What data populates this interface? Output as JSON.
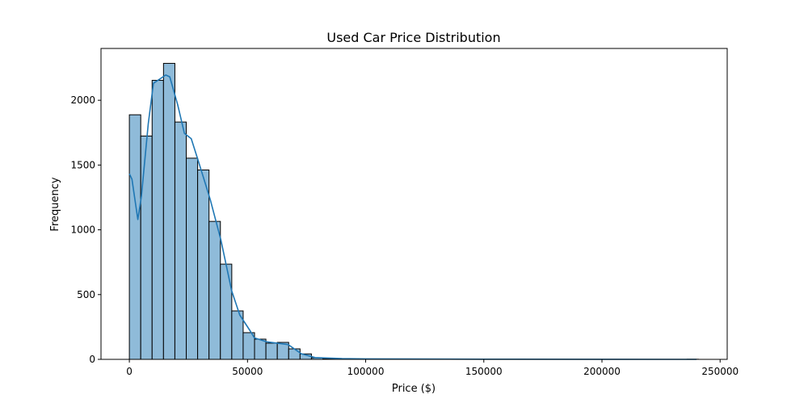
{
  "chart_data": {
    "type": "bar",
    "subtype": "histogram-with-kde",
    "title": "Used Car Price Distribution",
    "xlabel": "Price ($)",
    "ylabel": "Frequency",
    "xlim": [
      -12000,
      253000
    ],
    "ylim": [
      0,
      2400
    ],
    "xticks": [
      0,
      50000,
      100000,
      150000,
      200000,
      250000
    ],
    "yticks": [
      0,
      500,
      1000,
      1500,
      2000
    ],
    "grid": false,
    "bin_start": 0,
    "bin_width": 4816,
    "counts": [
      1888,
      1724,
      2154,
      2285,
      1832,
      1553,
      1462,
      1065,
      735,
      374,
      206,
      156,
      125,
      131,
      81,
      42,
      12,
      6,
      4,
      3,
      2,
      1,
      1,
      1,
      0,
      1,
      0,
      0,
      0,
      0,
      0,
      0,
      0,
      0,
      0,
      0,
      0,
      0,
      0,
      0,
      0,
      0,
      0,
      0,
      0,
      0,
      0,
      0,
      0,
      1
    ],
    "kde": {
      "x": [
        0,
        1100,
        3600,
        5100,
        8000,
        10200,
        15400,
        17100,
        20500,
        23300,
        26200,
        29600,
        34200,
        38700,
        43300,
        46700,
        51200,
        52900,
        58100,
        67200,
        72800,
        78600,
        90000,
        100000,
        150000,
        200000,
        240000
      ],
      "y": [
        1433,
        1391,
        1080,
        1259,
        1819,
        2131,
        2195,
        2181,
        1963,
        1745,
        1703,
        1506,
        1236,
        924,
        530,
        343,
        218,
        166,
        135,
        114,
        43,
        14,
        6,
        4,
        1,
        0.5,
        0
      ]
    },
    "colors": {
      "bar_fill": "#8fbbd9",
      "bar_edge": "#000000",
      "kde_line": "#1f77b4"
    }
  }
}
